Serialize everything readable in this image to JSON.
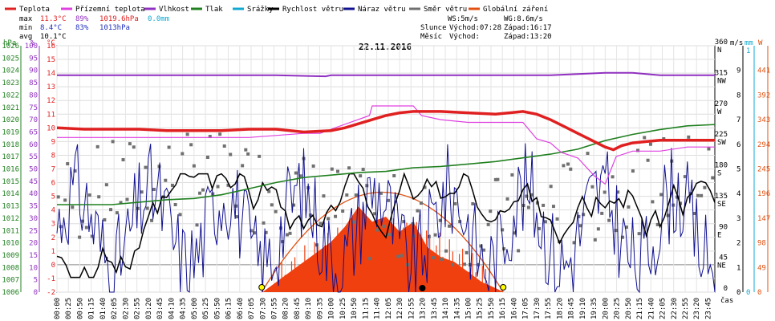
{
  "chart_data": {
    "type": "line",
    "title": "22.11.2016",
    "xlabel": "čas",
    "legend": [
      {
        "name": "Teplota",
        "color": "#e02020"
      },
      {
        "name": "Přízemní teplota",
        "color": "#e040e0"
      },
      {
        "name": "Vlhkost",
        "color": "#9030c0"
      },
      {
        "name": "Tlak",
        "color": "#208020"
      },
      {
        "name": "Srážky",
        "color": "#10a8d0"
      },
      {
        "name": "Rychlost větru",
        "color": "#000000"
      },
      {
        "name": "Náraz větru",
        "color": "#101090"
      },
      {
        "name": "Směr větru",
        "color": "#707070"
      },
      {
        "name": "Globální záření",
        "color": "#e05010"
      }
    ],
    "stats": {
      "max_label": "max",
      "max_temp": "11.3°C",
      "max_hum": "89%",
      "max_press": "1019.6hPa",
      "max_rain": "0.0mm",
      "min_label": "min",
      "min_temp": "8.4°C",
      "min_hum": "83%",
      "min_press": "1013hPa",
      "avg_label": "avg",
      "avg_temp": "10.1°C"
    },
    "sun": {
      "ws": "WS:5m/s",
      "wg": "WG:8.6m/s",
      "sun_label": "Slunce",
      "sun_rise": "Východ:07:28",
      "sun_set": "Západ:16:17",
      "moon_label": "Měsíc",
      "moon_rise": "Východ:",
      "moon_set": "Západ:13:20"
    },
    "axes": {
      "hpa": {
        "unit": "hPa",
        "ticks": [
          "1026",
          "1025",
          "1024",
          "1023",
          "1022",
          "1021",
          "1020",
          "1019",
          "1018",
          "1017",
          "1016",
          "1015",
          "1014",
          "1013",
          "1012",
          "1011",
          "1010",
          "1009",
          "1008",
          "1007",
          "1006"
        ]
      },
      "pct": {
        "unit": "%",
        "ticks": [
          "100",
          "95",
          "90",
          "85",
          "80",
          "75",
          "70",
          "65",
          "60",
          "55",
          "50",
          "45",
          "40",
          "35",
          "30",
          "25",
          "20",
          "15",
          "10",
          "5",
          "0"
        ]
      },
      "temp": {
        "unit": "°C",
        "ticks": [
          "16",
          "15",
          "14",
          "13",
          "12",
          "11",
          "10",
          "9",
          "8",
          "7",
          "6",
          "5",
          "4",
          "3",
          "2",
          "1",
          "0",
          "-1",
          "-2"
        ]
      },
      "dir": {
        "unit": "°",
        "ticks": [
          {
            "v": "360",
            "l": "N"
          },
          {
            "v": "315",
            "l": "NW"
          },
          {
            "v": "270",
            "l": "W"
          },
          {
            "v": "225",
            "l": "SW"
          },
          {
            "v": "180",
            "l": "S"
          },
          {
            "v": "135",
            "l": "SE"
          },
          {
            "v": "90",
            "l": "E"
          },
          {
            "v": "45",
            "l": "NE"
          },
          {
            "v": "0",
            "l": ""
          }
        ]
      },
      "ms": {
        "unit": "m/s",
        "ticks": [
          "9",
          "8",
          "7",
          "6",
          "5",
          "4",
          "3",
          "2",
          "1",
          "0"
        ]
      },
      "mm": {
        "unit": "mm",
        "ticks": [
          "1",
          "0"
        ]
      },
      "w": {
        "unit": "W",
        "ticks": [
          "441",
          "392",
          "343",
          "294",
          "245",
          "196",
          "147",
          "98",
          "49",
          "0"
        ]
      }
    },
    "x_labels": [
      "00:00",
      "00:25",
      "00:50",
      "01:15",
      "01:40",
      "02:05",
      "02:30",
      "02:55",
      "03:20",
      "03:45",
      "04:10",
      "04:35",
      "05:00",
      "05:25",
      "05:50",
      "06:15",
      "06:40",
      "07:05",
      "07:30",
      "07:55",
      "08:20",
      "08:45",
      "09:10",
      "09:35",
      "10:00",
      "10:25",
      "10:50",
      "11:15",
      "11:40",
      "12:05",
      "12:30",
      "12:55",
      "13:20",
      "13:45",
      "14:10",
      "14:35",
      "15:00",
      "15:25",
      "15:50",
      "16:15",
      "16:40",
      "17:05",
      "17:30",
      "17:55",
      "18:20",
      "18:45",
      "19:10",
      "19:35",
      "20:00",
      "20:25",
      "20:50",
      "21:15",
      "21:40",
      "22:05",
      "22:30",
      "22:55",
      "23:20",
      "23:45"
    ],
    "series": [
      {
        "name": "Teplota",
        "unit": "°C",
        "x_hours": [
          0,
          1,
          2,
          3,
          4,
          5,
          6,
          7,
          8,
          9,
          10,
          10.5,
          11,
          11.5,
          12,
          12.5,
          13,
          14,
          15,
          16,
          17,
          17.5,
          18,
          18.5,
          19,
          19.5,
          20,
          20.3,
          20.6,
          21,
          21.5,
          22,
          23,
          24
        ],
        "values": [
          10.0,
          9.9,
          9.9,
          9.9,
          9.8,
          9.8,
          9.8,
          9.9,
          9.9,
          9.7,
          9.8,
          10.0,
          10.3,
          10.6,
          10.9,
          11.1,
          11.2,
          11.2,
          11.1,
          11.0,
          11.2,
          11.0,
          10.6,
          10.1,
          9.6,
          9.1,
          8.6,
          8.4,
          8.7,
          8.9,
          9.0,
          9.1,
          9.1,
          9.1
        ]
      },
      {
        "name": "Vlhkost",
        "unit": "%",
        "x_hours": [
          0,
          4,
          8,
          9.8,
          10,
          11,
          12,
          14,
          16,
          18,
          20,
          21,
          22,
          24
        ],
        "values": [
          88,
          88,
          88,
          87.6,
          88,
          88,
          88,
          88,
          88,
          88,
          89,
          89,
          88,
          88
        ]
      },
      {
        "name": "Tlak",
        "unit": "hPa",
        "x_hours": [
          0,
          1,
          2,
          3,
          4,
          5,
          6,
          7,
          8,
          9,
          10,
          11,
          12,
          13,
          14,
          15,
          16,
          17,
          18,
          19,
          20,
          21,
          22,
          23,
          24
        ],
        "values": [
          1013.1,
          1013.1,
          1013.1,
          1013.3,
          1013.5,
          1013.6,
          1013.9,
          1014.4,
          1014.9,
          1015.3,
          1015.5,
          1015.7,
          1015.8,
          1016.1,
          1016.2,
          1016.4,
          1016.6,
          1016.9,
          1017.2,
          1017.6,
          1018.3,
          1018.8,
          1019.2,
          1019.5,
          1019.6
        ]
      },
      {
        "name": "Globální záření",
        "unit": "W",
        "x_hours": [
          7.5,
          8,
          8.5,
          9,
          9.5,
          10,
          10.5,
          11,
          11.5,
          12,
          12.5,
          13,
          13.5,
          14,
          14.5,
          15,
          15.5,
          16,
          16.3
        ],
        "values": [
          0,
          20,
          40,
          60,
          80,
          100,
          130,
          170,
          140,
          150,
          120,
          140,
          90,
          70,
          60,
          40,
          20,
          8,
          0
        ]
      },
      {
        "name": "Přízemní teplota",
        "unit": "°C",
        "x_hours": [
          0,
          5,
          7,
          9,
          9.6,
          10,
          11.4,
          11.5,
          13,
          13.3,
          14,
          15,
          17,
          17.5,
          18,
          18.4,
          19,
          19.6,
          20,
          20.4,
          21,
          22,
          23,
          24
        ],
        "values": [
          9.3,
          9.3,
          9.3,
          9.6,
          9.6,
          9.9,
          10.9,
          11.6,
          11.6,
          10.9,
          10.6,
          10.4,
          10.4,
          9.2,
          8.9,
          8.2,
          7.8,
          6.5,
          5.9,
          7.9,
          8.3,
          8.3,
          8.6,
          8.6
        ]
      }
    ],
    "y_ranges": {
      "temp": [
        -2,
        16
      ],
      "hpa": [
        1006,
        1026
      ],
      "pct": [
        0,
        100
      ],
      "w": [
        0,
        490
      ],
      "ms": [
        0,
        10
      ],
      "dir": [
        0,
        360
      ]
    }
  }
}
